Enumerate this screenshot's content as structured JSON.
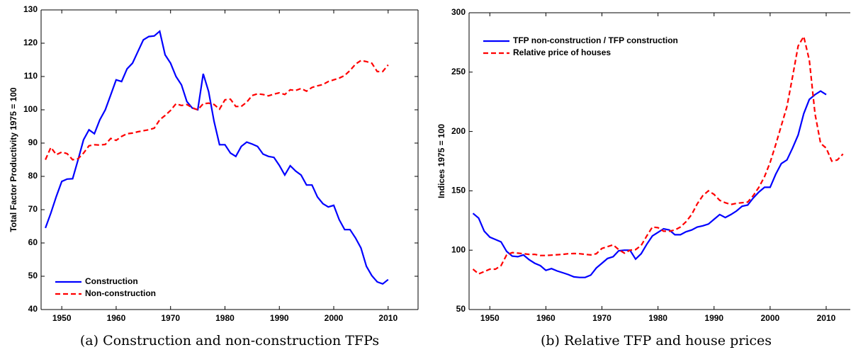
{
  "chart_data": [
    {
      "type": "line",
      "caption": "(a) Construction and non-construction TFPs",
      "ylabel": "Total Factor Productivity 1975 = 100",
      "x": [
        1947,
        1948,
        1949,
        1950,
        1951,
        1952,
        1953,
        1954,
        1955,
        1956,
        1957,
        1958,
        1959,
        1960,
        1961,
        1962,
        1963,
        1964,
        1965,
        1966,
        1967,
        1968,
        1969,
        1970,
        1971,
        1972,
        1973,
        1974,
        1975,
        1976,
        1977,
        1978,
        1979,
        1980,
        1981,
        1982,
        1983,
        1984,
        1985,
        1986,
        1987,
        1988,
        1989,
        1990,
        1991,
        1992,
        1993,
        1994,
        1995,
        1996,
        1997,
        1998,
        1999,
        2000,
        2001,
        2002,
        2003,
        2004,
        2005,
        2006,
        2007,
        2008,
        2009,
        2010
      ],
      "series": [
        {
          "name": "Construction",
          "color": "#0000ff",
          "dash": false,
          "values": [
            64.5,
            69,
            74,
            78.5,
            79.2,
            79.3,
            85,
            91,
            94,
            92.8,
            97,
            100,
            104.5,
            109,
            108.5,
            112.3,
            114,
            117.5,
            121,
            122,
            122.2,
            123.6,
            116.5,
            114,
            110,
            107.5,
            102.5,
            100.5,
            100,
            110.8,
            105.5,
            96.5,
            89.5,
            89.5,
            87,
            86,
            89,
            90.3,
            89.7,
            89,
            86.7,
            86,
            85.7,
            83.3,
            80.4,
            83.2,
            81.6,
            80.4,
            77.4,
            77.4,
            73.8,
            71.8,
            70.8,
            71.3,
            67,
            64,
            64,
            61.5,
            58.5,
            53,
            50.2,
            48.3,
            47.7,
            49
          ]
        },
        {
          "name": "Non-construction",
          "color": "#ff0000",
          "dash": true,
          "values": [
            85,
            88.7,
            86.5,
            87.3,
            86.8,
            85,
            85.3,
            87,
            89.2,
            89.5,
            89.4,
            89.6,
            91.4,
            90.8,
            92,
            92.8,
            93,
            93.4,
            93.7,
            94,
            94.5,
            97,
            98.3,
            99.8,
            101.8,
            101.3,
            101.6,
            100.6,
            100,
            101.8,
            102,
            101.6,
            100.2,
            103,
            103.2,
            101,
            101,
            102.3,
            104.3,
            104.8,
            104.6,
            104.2,
            104.7,
            105.1,
            104.6,
            106,
            105.8,
            106.4,
            105.6,
            106.7,
            107.2,
            107.6,
            108.5,
            109,
            109.5,
            110.3,
            111.8,
            113.7,
            114.8,
            114.5,
            114,
            111.5,
            111.5,
            113.5
          ]
        }
      ],
      "xlim": [
        1946.2,
        2015.5
      ],
      "xticks": [
        1950,
        1960,
        1970,
        1980,
        1990,
        2000,
        2010
      ],
      "ylim": [
        40,
        130
      ],
      "yticks": [
        40,
        50,
        60,
        70,
        80,
        90,
        100,
        110,
        120,
        130
      ],
      "legend": "lower left",
      "grid": false
    },
    {
      "type": "line",
      "caption": "(b) Relative TFP and house prices",
      "ylabel": "Indices 1975 = 100",
      "x": [
        1947,
        1948,
        1949,
        1950,
        1951,
        1952,
        1953,
        1954,
        1955,
        1956,
        1957,
        1958,
        1959,
        1960,
        1961,
        1962,
        1963,
        1964,
        1965,
        1966,
        1967,
        1968,
        1969,
        1970,
        1971,
        1972,
        1973,
        1974,
        1975,
        1976,
        1977,
        1978,
        1979,
        1980,
        1981,
        1982,
        1983,
        1984,
        1985,
        1986,
        1987,
        1988,
        1989,
        1990,
        1991,
        1992,
        1993,
        1994,
        1995,
        1996,
        1997,
        1998,
        1999,
        2000,
        2001,
        2002,
        2003,
        2004,
        2005,
        2006,
        2007,
        2008,
        2009,
        2010,
        2011,
        2012,
        2013
      ],
      "series": [
        {
          "name": "TFP non-construction / TFP construction",
          "color": "#0000ff",
          "dash": false,
          "values": [
            131,
            127,
            116,
            111,
            109,
            107,
            99,
            95,
            94.5,
            96,
            92,
            89,
            87,
            83,
            84.5,
            82.5,
            81,
            79.5,
            77.5,
            77,
            77,
            79,
            85,
            89,
            93,
            94.5,
            99.5,
            100,
            100,
            92.5,
            97,
            105,
            112,
            115,
            118,
            117,
            113,
            113,
            115.5,
            117,
            119.5,
            120.5,
            122,
            126,
            130,
            127.5,
            130,
            133,
            137,
            138,
            144,
            149,
            153,
            153,
            164,
            173,
            176,
            186,
            197,
            215,
            227,
            231,
            234,
            231,
            null,
            null,
            null
          ]
        },
        {
          "name": "Relative price of houses",
          "color": "#ff0000",
          "dash": true,
          "values": [
            84,
            80,
            82,
            84,
            84,
            87,
            96,
            98,
            97.5,
            97,
            96.5,
            96.5,
            95.5,
            95.5,
            95.8,
            96.2,
            96.5,
            97,
            97.2,
            97,
            96.5,
            96,
            97,
            101.5,
            103,
            104.5,
            100.5,
            97.5,
            100,
            100.5,
            104,
            112,
            119.5,
            119,
            116,
            116,
            117,
            119.5,
            124,
            130,
            139,
            146,
            150,
            147,
            142,
            140,
            138.5,
            139.5,
            140,
            140.5,
            146,
            153,
            162,
            174,
            189,
            205,
            221,
            246,
            272,
            280,
            260,
            215,
            190,
            186,
            175,
            176,
            181
          ]
        }
      ],
      "xlim": [
        1946.3,
        2014.3
      ],
      "xticks": [
        1950,
        1960,
        1970,
        1980,
        1990,
        2000,
        2010
      ],
      "ylim": [
        50,
        300
      ],
      "yticks": [
        50,
        100,
        150,
        200,
        250,
        300
      ],
      "legend": "upper left",
      "grid": false
    }
  ]
}
